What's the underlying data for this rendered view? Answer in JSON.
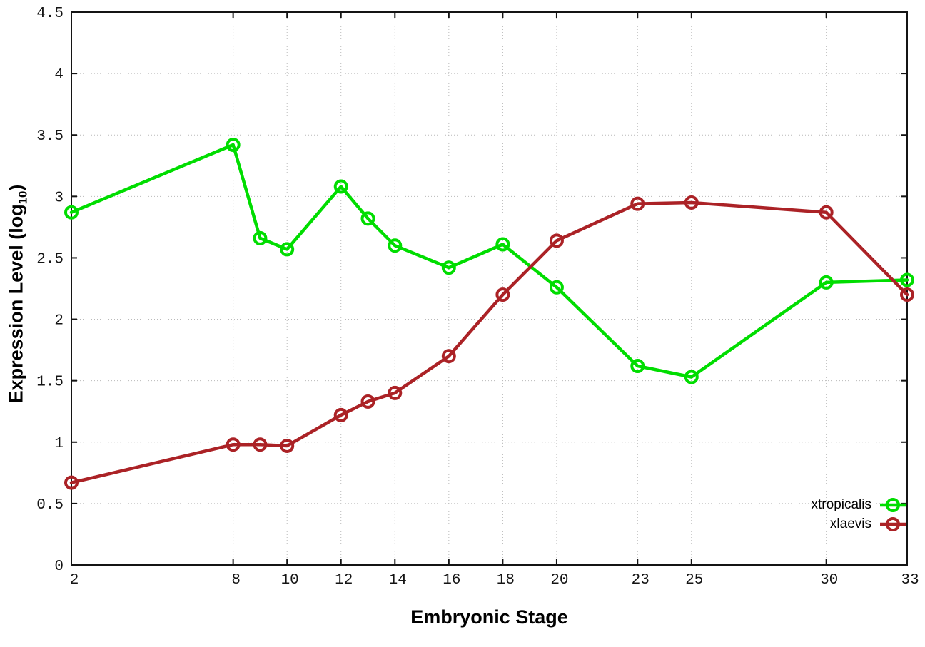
{
  "chart_data": {
    "type": "line",
    "title": "",
    "xlabel": "Embryonic Stage",
    "ylabel_main": "Expression Level (log",
    "ylabel_sub": "10",
    "ylabel_end": ")",
    "xlim": [
      2,
      33
    ],
    "ylim": [
      0,
      4.5
    ],
    "xticks": [
      2,
      8,
      10,
      12,
      14,
      16,
      18,
      20,
      23,
      25,
      30,
      33
    ],
    "yticks": [
      0,
      0.5,
      1,
      1.5,
      2,
      2.5,
      3,
      3.5,
      4,
      4.5
    ],
    "ytick_labels": [
      "0",
      "0.5",
      "1",
      "1.5",
      "2",
      "2.5",
      "3",
      "3.5",
      "4",
      "4.5"
    ],
    "grid": "dotted both axes",
    "legend_position": "inside bottom-right",
    "marker_style": "open-circle",
    "x": [
      2,
      8,
      9,
      10,
      12,
      13,
      14,
      16,
      18,
      20,
      23,
      25,
      30,
      33
    ],
    "series": [
      {
        "name": "xtropicalis",
        "color": "#00dd00",
        "values": [
          2.87,
          3.42,
          2.66,
          2.57,
          3.08,
          2.82,
          2.6,
          2.42,
          2.61,
          2.26,
          1.62,
          1.53,
          2.3,
          2.32
        ]
      },
      {
        "name": "xlaevis",
        "color": "#ab2226",
        "values": [
          0.67,
          0.98,
          0.98,
          0.97,
          1.22,
          1.33,
          1.4,
          1.7,
          2.2,
          2.64,
          2.94,
          2.95,
          2.87,
          2.2
        ]
      }
    ]
  }
}
